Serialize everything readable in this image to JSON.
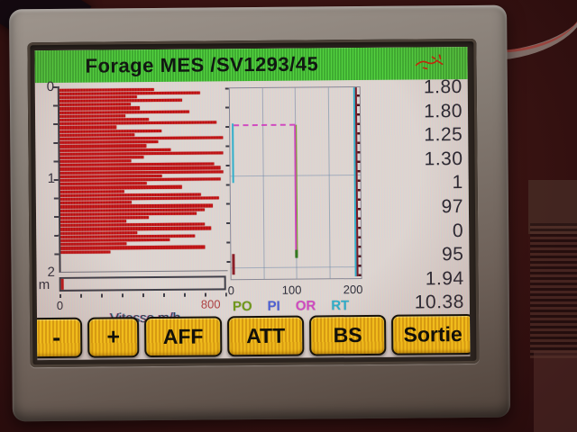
{
  "window": {
    "title": "Forage MES /SV1293/45"
  },
  "readouts": {
    "values": [
      "1.80",
      "1.80",
      "1.25",
      "1.30",
      "1",
      "97",
      "0",
      "95",
      "1.94",
      "10.38"
    ]
  },
  "function_keys": {
    "buttons": [
      {
        "id": "minus",
        "label": "-"
      },
      {
        "id": "plus",
        "label": "+"
      },
      {
        "id": "aff",
        "label": "AFF"
      },
      {
        "id": "att",
        "label": "ATT"
      },
      {
        "id": "bs",
        "label": "BS"
      },
      {
        "id": "sortie",
        "label": "Sortie"
      }
    ]
  },
  "colors": {
    "titlebar_green": "#3cc22c",
    "bar_red": "#cf1212",
    "button_yellow": "#e8ae17",
    "trace_po_green": "#6f9c14",
    "trace_pi_blue": "#4a5fd8",
    "trace_or_magenta": "#d648c4",
    "trace_rt_cyan": "#2ab4cf",
    "trace_dark_red": "#7c1420"
  },
  "chart_data": [
    {
      "type": "bar",
      "orientation": "horizontal",
      "xlabel": "Vitesse m/h",
      "ylabel": "m",
      "xlim": [
        0,
        800
      ],
      "ylim": [
        0,
        2
      ],
      "x_tick_labels": [
        "0",
        "800"
      ],
      "y_tick_labels": [
        "0",
        "1",
        "2"
      ],
      "depth_range_drilled_m": [
        0,
        1.78
      ],
      "values": [
        460,
        680,
        376,
        595,
        347,
        390,
        631,
        318,
        434,
        762,
        274,
        492,
        361,
        791,
        478,
        420,
        536,
        791,
        405,
        347,
        748,
        777,
        791,
        492,
        777,
        420,
        590,
        310,
        680,
        770,
        345,
        740,
        700,
        660,
        430,
        320,
        700,
        730,
        370,
        650,
        530,
        320,
        700,
        240
      ]
    },
    {
      "type": "line",
      "xlim": [
        0,
        200
      ],
      "ylim": [
        0,
        2
      ],
      "x_tick_labels": [
        "0",
        "100",
        "200"
      ],
      "grid": true,
      "legend_position": "bottom",
      "legend_items": [
        {
          "label": "PO",
          "color": "#6f9c14"
        },
        {
          "label": "PI",
          "color": "#4a5fd8"
        },
        {
          "label": "OR",
          "color": "#d648c4"
        },
        {
          "label": "RT",
          "color": "#2ab4cf"
        }
      ],
      "series": [
        {
          "name": "PO",
          "approx_value": 97,
          "depth_range_m": [
            0.45,
            1.75
          ],
          "shape": "vertical trace"
        },
        {
          "name": "PI",
          "approx_value": 196,
          "depth_range_m": [
            0.0,
            2.0
          ],
          "shape": "vertical trace near right edge"
        },
        {
          "name": "OR",
          "approx_value": 95,
          "depth_range_m": [
            0.45,
            1.75
          ],
          "shape": "dashed level line at depth 0.45 then vertical trace"
        },
        {
          "name": "RT",
          "approx_value": 2,
          "depth_range_m": [
            0.4,
            1.0
          ],
          "shape": "short vertical trace near left axis"
        }
      ]
    }
  ]
}
